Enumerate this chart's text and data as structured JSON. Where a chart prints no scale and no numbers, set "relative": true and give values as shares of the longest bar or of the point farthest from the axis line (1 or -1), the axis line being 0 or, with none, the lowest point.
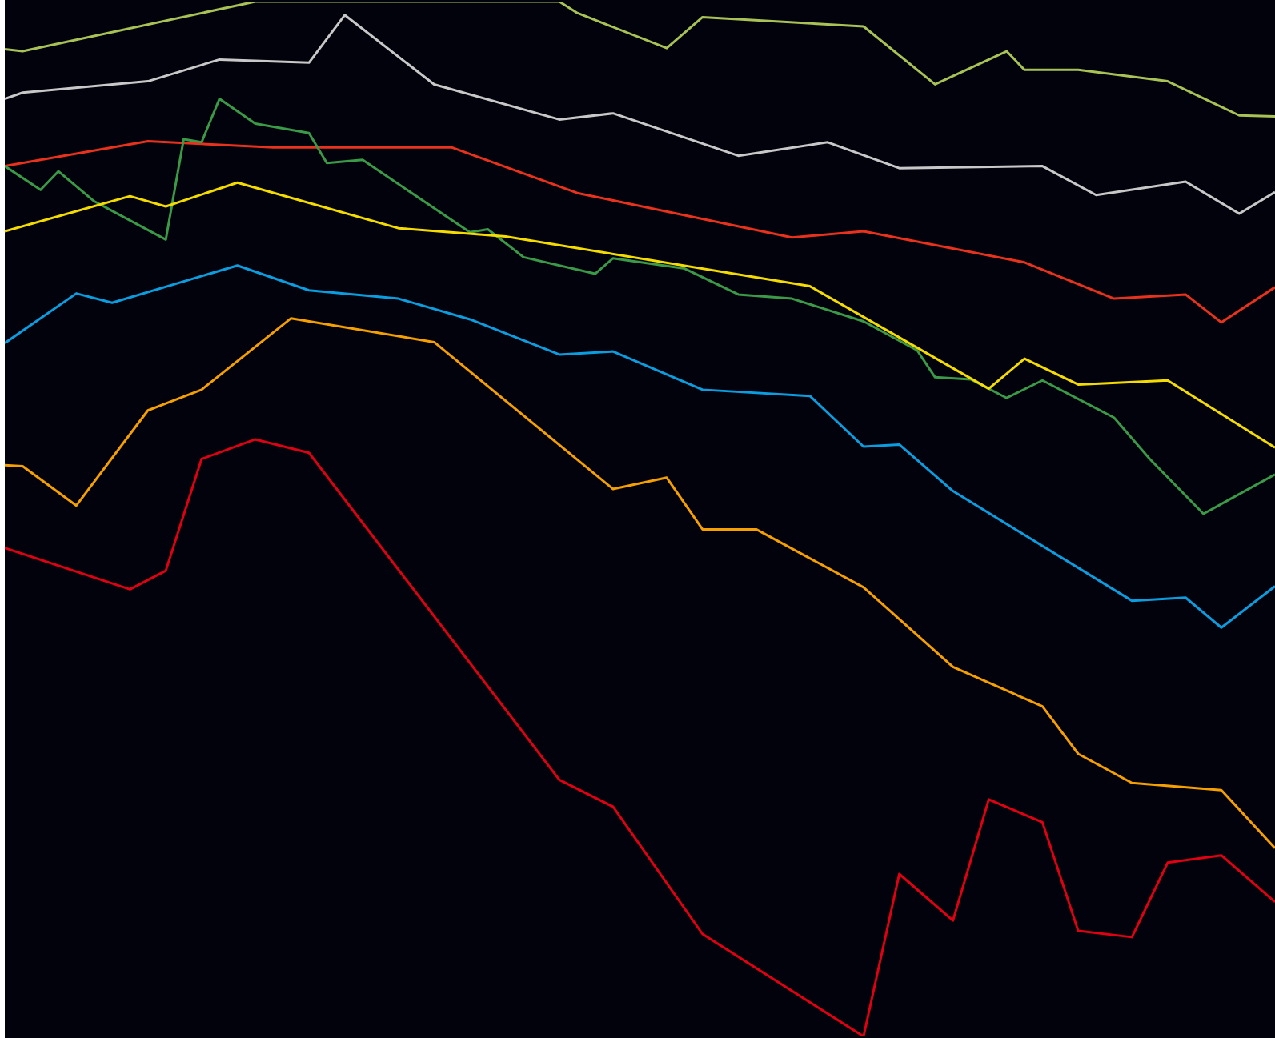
{
  "chart_data": {
    "type": "line",
    "relative": true,
    "tick_labels": false,
    "line_style": "solid",
    "categories": [
      null,
      null,
      null,
      null,
      null,
      null,
      null,
      null,
      null,
      null,
      null,
      null,
      null,
      null,
      null,
      null,
      null,
      null,
      null,
      null,
      null,
      null,
      null,
      null,
      null,
      null,
      null,
      null,
      null,
      null,
      null,
      null,
      null,
      null,
      null,
      null,
      null,
      null,
      null,
      null,
      null,
      null,
      null,
      null,
      null,
      null,
      null,
      null,
      null,
      null,
      null,
      null,
      null,
      null,
      null,
      null,
      null,
      null,
      null,
      null,
      null,
      null,
      null,
      null,
      null,
      null,
      null,
      null,
      null,
      null,
      null,
      null
    ],
    "series": [
      {
        "color": "#a8c256",
        "values": [
          0.954,
          0.952,
          null,
          null,
          null,
          null,
          null,
          null,
          null,
          null,
          null,
          null,
          null,
          null,
          1,
          null,
          null,
          null,
          null,
          null,
          null,
          null,
          null,
          null,
          null,
          null,
          null,
          null,
          null,
          null,
          null,
          1,
          0.989,
          null,
          null,
          null,
          null,
          0.955,
          null,
          0.985,
          null,
          null,
          null,
          null,
          null,
          null,
          null,
          null,
          0.976,
          null,
          null,
          null,
          0.92,
          null,
          null,
          null,
          0.952,
          0.934,
          null,
          null,
          0.934,
          null,
          null,
          null,
          null,
          0.923,
          null,
          null,
          null,
          0.89,
          null,
          0.889
        ]
      },
      {
        "color": "#c8c8c8",
        "values": [
          0.906,
          0.912,
          null,
          null,
          null,
          null,
          null,
          null,
          0.923,
          null,
          null,
          null,
          0.944,
          null,
          null,
          null,
          null,
          0.941,
          null,
          0.987,
          null,
          null,
          null,
          null,
          0.92,
          null,
          null,
          null,
          null,
          null,
          null,
          0.886,
          null,
          null,
          0.892,
          null,
          null,
          null,
          null,
          null,
          null,
          0.851,
          null,
          null,
          null,
          null,
          0.864,
          null,
          null,
          null,
          0.839,
          null,
          null,
          null,
          null,
          null,
          null,
          null,
          0.841,
          null,
          null,
          0.813,
          null,
          null,
          null,
          null,
          0.826,
          null,
          null,
          0.795,
          null,
          0.816
        ]
      },
      {
        "color": "#e8321e",
        "values": [
          0.841,
          null,
          null,
          null,
          null,
          null,
          null,
          null,
          0.865,
          null,
          null,
          null,
          null,
          null,
          null,
          0.859,
          null,
          null,
          null,
          null,
          null,
          null,
          null,
          null,
          null,
          0.859,
          null,
          null,
          null,
          null,
          null,
          null,
          0.815,
          null,
          null,
          null,
          null,
          null,
          null,
          null,
          null,
          null,
          null,
          null,
          0.772,
          null,
          null,
          null,
          0.778,
          null,
          null,
          null,
          null,
          null,
          null,
          null,
          null,
          0.748,
          null,
          null,
          null,
          null,
          0.713,
          null,
          null,
          null,
          0.717,
          null,
          0.69,
          null,
          null,
          0.724
        ]
      },
      {
        "color": "#3a9a48",
        "values": [
          0.841,
          null,
          0.818,
          0.836,
          null,
          0.807,
          null,
          null,
          null,
          0.77,
          0.867,
          0.864,
          0.906,
          null,
          0.882,
          null,
          null,
          0.873,
          0.844,
          null,
          0.847,
          null,
          null,
          null,
          null,
          null,
          0.777,
          0.78,
          null,
          0.753,
          null,
          null,
          null,
          0.737,
          0.752,
          null,
          null,
          null,
          0.742,
          null,
          null,
          0.717,
          null,
          null,
          0.713,
          null,
          null,
          null,
          0.691,
          null,
          null,
          0.663,
          0.637,
          null,
          0.635,
          null,
          0.617,
          null,
          0.634,
          null,
          null,
          null,
          0.598,
          null,
          0.558,
          null,
          null,
          0.505,
          null,
          null,
          null,
          0.543
        ]
      },
      {
        "color": "#f5dc00",
        "values": [
          0.778,
          null,
          null,
          null,
          null,
          null,
          null,
          0.812,
          null,
          0.802,
          null,
          null,
          null,
          0.825,
          null,
          null,
          null,
          null,
          null,
          null,
          null,
          null,
          0.781,
          null,
          null,
          null,
          null,
          null,
          0.773,
          null,
          null,
          null,
          null,
          null,
          null,
          null,
          null,
          null,
          null,
          null,
          null,
          null,
          null,
          null,
          null,
          0.725,
          null,
          null,
          null,
          null,
          null,
          null,
          null,
          null,
          null,
          0.626,
          null,
          0.655,
          null,
          null,
          0.63,
          null,
          null,
          null,
          null,
          0.634,
          null,
          null,
          null,
          null,
          null,
          0.569
        ]
      },
      {
        "color": "#0a9ee0",
        "values": [
          0.67,
          null,
          null,
          null,
          0.718,
          null,
          0.709,
          null,
          null,
          null,
          null,
          null,
          null,
          0.745,
          null,
          null,
          null,
          0.721,
          null,
          null,
          null,
          null,
          0.713,
          null,
          null,
          null,
          0.693,
          null,
          null,
          null,
          null,
          0.659,
          null,
          null,
          0.662,
          null,
          null,
          null,
          null,
          0.625,
          null,
          null,
          null,
          null,
          null,
          0.619,
          null,
          null,
          0.57,
          null,
          0.572,
          null,
          null,
          0.527,
          null,
          null,
          null,
          null,
          null,
          null,
          null,
          null,
          null,
          0.421,
          null,
          null,
          0.424,
          null,
          0.395,
          null,
          null,
          0.435
        ]
      },
      {
        "color": "#f5a000",
        "values": [
          0.552,
          0.551,
          null,
          null,
          0.513,
          null,
          null,
          null,
          0.605,
          null,
          null,
          0.625,
          null,
          null,
          null,
          null,
          0.694,
          null,
          null,
          null,
          null,
          null,
          null,
          null,
          0.671,
          null,
          null,
          null,
          null,
          null,
          null,
          null,
          null,
          null,
          0.529,
          null,
          null,
          0.54,
          null,
          0.49,
          null,
          null,
          0.49,
          null,
          null,
          null,
          null,
          null,
          0.434,
          null,
          null,
          null,
          null,
          0.357,
          null,
          null,
          null,
          null,
          0.319,
          null,
          0.273,
          null,
          null,
          0.245,
          null,
          null,
          null,
          null,
          0.238,
          null,
          null,
          0.182
        ]
      },
      {
        "color": "#e00014",
        "values": [
          0.472,
          null,
          null,
          null,
          null,
          null,
          null,
          0.432,
          null,
          0.45,
          null,
          0.558,
          null,
          null,
          0.577,
          null,
          null,
          0.564,
          null,
          null,
          null,
          null,
          null,
          null,
          null,
          null,
          null,
          null,
          null,
          null,
          null,
          0.248,
          null,
          null,
          0.222,
          null,
          null,
          null,
          null,
          0.099,
          null,
          null,
          null,
          null,
          null,
          null,
          null,
          null,
          0,
          null,
          0.157,
          null,
          null,
          0.112,
          null,
          0.229,
          null,
          null,
          0.207,
          null,
          0.102,
          null,
          null,
          0.096,
          null,
          0.168,
          null,
          null,
          0.175,
          null,
          null,
          0.13
        ]
      }
    ]
  }
}
